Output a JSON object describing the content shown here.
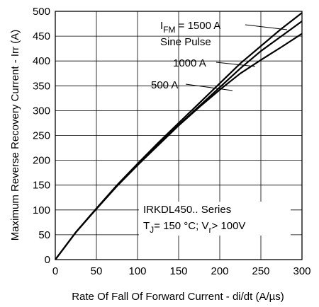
{
  "chart_data": {
    "type": "line",
    "xlabel": "Rate Of Fall Of Forward Current - di/dt (A/µs)",
    "ylabel": "Maximum Reverse Recovery Current - Irr (A)",
    "xlim": [
      0,
      300
    ],
    "ylim": [
      0,
      500
    ],
    "xticks": [
      0,
      50,
      100,
      150,
      200,
      250,
      300
    ],
    "yticks": [
      0,
      50,
      100,
      150,
      200,
      250,
      300,
      350,
      400,
      450,
      500
    ],
    "grid": true,
    "series": [
      {
        "name": "1500 A",
        "x": [
          0,
          25,
          50,
          75,
          100,
          125,
          150,
          175,
          200,
          225,
          250,
          275,
          300
        ],
        "y": [
          0,
          55,
          103,
          150,
          193,
          235,
          275,
          315,
          355,
          395,
          430,
          465,
          497
        ]
      },
      {
        "name": "1000 A",
        "x": [
          0,
          25,
          50,
          75,
          100,
          125,
          150,
          175,
          200,
          225,
          250,
          275,
          300
        ],
        "y": [
          0,
          55,
          103,
          149,
          191,
          232,
          271,
          309,
          347,
          385,
          420,
          450,
          480
        ]
      },
      {
        "name": "500 A",
        "x": [
          0,
          25,
          50,
          75,
          100,
          125,
          150,
          175,
          200,
          225,
          250,
          275,
          300
        ],
        "y": [
          0,
          55,
          102,
          148,
          190,
          230,
          270,
          307,
          342,
          375,
          402,
          428,
          455
        ]
      }
    ],
    "annotations": {
      "ifm_prefix": "I",
      "ifm_sub": "FM",
      "ifm_value": " = 1500 A",
      "pulse": "Sine Pulse",
      "label_1000": "1000 A",
      "label_500": "500 A",
      "series_name": "IRKDL450.. Series",
      "cond_t": "T",
      "cond_t_sub": "J",
      "cond_t_value": "= 150 °C; V",
      "cond_v_sub": "r",
      "cond_v_value": "> 100V"
    }
  }
}
